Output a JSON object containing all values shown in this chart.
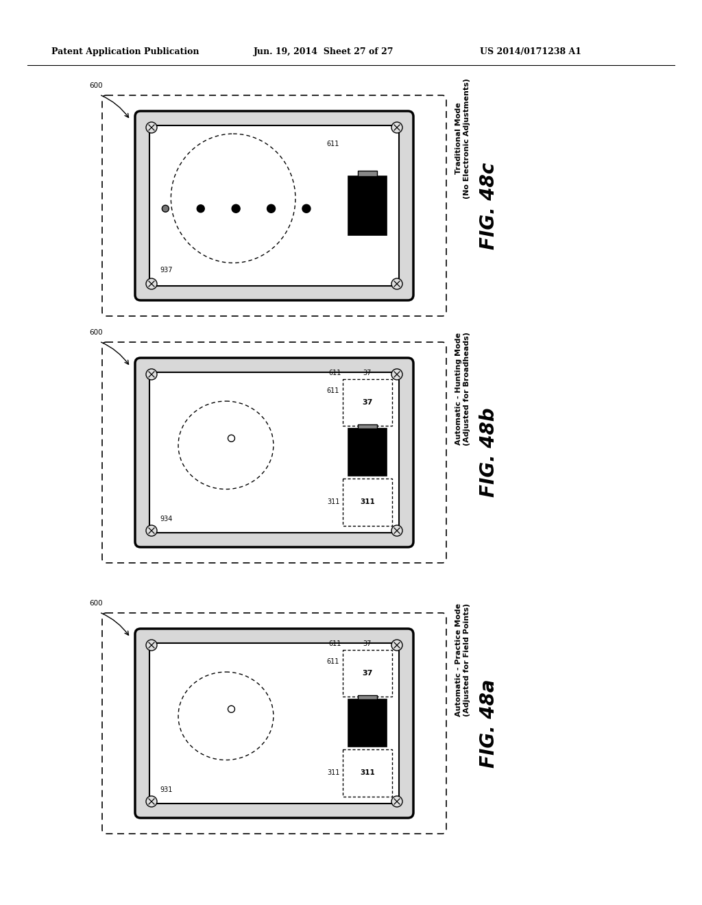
{
  "bg_color": "#ffffff",
  "header_text": "Patent Application Publication",
  "header_date": "Jun. 19, 2014  Sheet 27 of 27",
  "header_patent": "US 2014/0171238 A1",
  "figures": [
    {
      "id": "48c",
      "fig_label": "FIG. 48c",
      "sublabel_line1": "Traditional Mode",
      "sublabel_line2": "(No Electronic Adjustments)",
      "mode": "traditional",
      "inner_ref": "937",
      "inner_ref2": "611"
    },
    {
      "id": "48b",
      "fig_label": "FIG. 48b",
      "sublabel_line1": "Automatic - Hunting Mode",
      "sublabel_line2": "(Adjusted for Broadheads)",
      "mode": "hunting",
      "inner_ref": "934",
      "inner_ref2": "611",
      "disp_ref": "37",
      "bot_ref": "311"
    },
    {
      "id": "48a",
      "fig_label": "FIG. 48a",
      "sublabel_line1": "Automatic - Practice Mode",
      "sublabel_line2": "(Adjusted for Field Points)",
      "mode": "practice",
      "inner_ref": "931",
      "inner_ref2": "611",
      "disp_ref": "37",
      "bot_ref": "311"
    }
  ]
}
